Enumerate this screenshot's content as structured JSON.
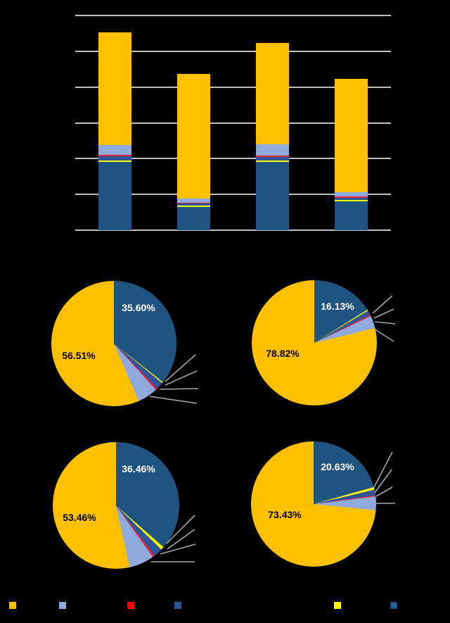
{
  "background": "#000000",
  "colors": {
    "gold": "#FFC000",
    "light_blue": "#8FAADC",
    "red": "#E8233C",
    "medium_blue": "#2E5597",
    "yellow": "#FFFF00",
    "navy": "#1F5480",
    "gridline": "#BFBFBF",
    "leader_line": "#A6A6A6"
  },
  "chart_data": [
    {
      "type": "bar",
      "subtype": "stacked-column",
      "title": "",
      "categories": [
        "",
        "",
        "",
        ""
      ],
      "xlabel": "",
      "ylabel": "",
      "ylim": [
        0,
        6
      ],
      "gridlines": true,
      "axis_tick_labels_visible": false,
      "series": [
        {
          "name": "navy",
          "color": "#1F5480",
          "values": [
            1.9,
            0.64,
            1.9,
            0.81
          ]
        },
        {
          "name": "yellow",
          "color": "#FFFF00",
          "values": [
            0.04,
            0.04,
            0.05,
            0.04
          ]
        },
        {
          "name": "medium-blue",
          "color": "#2E5597",
          "values": [
            0.12,
            0.06,
            0.1,
            0.06
          ]
        },
        {
          "name": "red",
          "color": "#E8233C",
          "values": [
            0.04,
            0.03,
            0.04,
            0.03
          ]
        },
        {
          "name": "light-blue",
          "color": "#8FAADC",
          "values": [
            0.29,
            0.11,
            0.32,
            0.13
          ]
        },
        {
          "name": "gold",
          "color": "#FFC000",
          "values": [
            3.14,
            3.48,
            2.82,
            3.17
          ]
        }
      ]
    },
    {
      "type": "pie",
      "position": "top-left",
      "title": "",
      "slices": [
        {
          "name": "navy",
          "color": "#1F5480",
          "value": 35.6,
          "label": "35.60%",
          "label_visible": true
        },
        {
          "name": "yellow",
          "color": "#FFFF00",
          "value": 0.3,
          "label": "",
          "label_visible": false
        },
        {
          "name": "medium-blue",
          "color": "#2E5597",
          "value": 1.9,
          "label": "",
          "label_visible": false
        },
        {
          "name": "red",
          "color": "#E8233C",
          "value": 0.5,
          "label": "",
          "label_visible": false
        },
        {
          "name": "light-blue",
          "color": "#8FAADC",
          "value": 5.19,
          "label": "",
          "label_visible": false
        },
        {
          "name": "gold",
          "color": "#FFC000",
          "value": 56.51,
          "label": "56.51%",
          "label_visible": true
        }
      ]
    },
    {
      "type": "pie",
      "position": "top-right",
      "title": "",
      "slices": [
        {
          "name": "navy",
          "color": "#1F5480",
          "value": 16.13,
          "label": "16.13%",
          "label_visible": true
        },
        {
          "name": "yellow",
          "color": "#FFFF00",
          "value": 0.3,
          "label": "",
          "label_visible": false
        },
        {
          "name": "medium-blue",
          "color": "#2E5597",
          "value": 1.2,
          "label": "",
          "label_visible": false
        },
        {
          "name": "red",
          "color": "#E8233C",
          "value": 0.35,
          "label": "",
          "label_visible": false
        },
        {
          "name": "light-blue",
          "color": "#8FAADC",
          "value": 3.2,
          "label": "",
          "label_visible": false
        },
        {
          "name": "gold",
          "color": "#FFC000",
          "value": 78.82,
          "label": "78.82%",
          "label_visible": true
        }
      ]
    },
    {
      "type": "pie",
      "position": "bottom-left",
      "title": "",
      "slices": [
        {
          "name": "navy",
          "color": "#1F5480",
          "value": 36.46,
          "label": "36.46%",
          "label_visible": true
        },
        {
          "name": "yellow",
          "color": "#FFFF00",
          "value": 0.8,
          "label": "",
          "label_visible": false
        },
        {
          "name": "medium-blue",
          "color": "#2E5597",
          "value": 2.28,
          "label": "",
          "label_visible": false
        },
        {
          "name": "red",
          "color": "#E8233C",
          "value": 0.6,
          "label": "",
          "label_visible": false
        },
        {
          "name": "light-blue",
          "color": "#8FAADC",
          "value": 6.4,
          "label": "",
          "label_visible": false
        },
        {
          "name": "gold",
          "color": "#FFC000",
          "value": 53.46,
          "label": "53.46%",
          "label_visible": true
        }
      ]
    },
    {
      "type": "pie",
      "position": "bottom-right",
      "title": "",
      "slices": [
        {
          "name": "navy",
          "color": "#1F5480",
          "value": 20.63,
          "label": "20.63%",
          "label_visible": true
        },
        {
          "name": "yellow",
          "color": "#FFFF00",
          "value": 0.7,
          "label": "",
          "label_visible": false
        },
        {
          "name": "medium-blue",
          "color": "#2E5597",
          "value": 1.44,
          "label": "",
          "label_visible": false
        },
        {
          "name": "red",
          "color": "#E8233C",
          "value": 0.3,
          "label": "",
          "label_visible": false
        },
        {
          "name": "light-blue",
          "color": "#8FAADC",
          "value": 3.5,
          "label": "",
          "label_visible": false
        },
        {
          "name": "gold",
          "color": "#FFC000",
          "value": 73.43,
          "label": "73.43%",
          "label_visible": true
        }
      ]
    }
  ],
  "legend": {
    "items": [
      {
        "name": "gold",
        "color": "#FFC000",
        "label": ""
      },
      {
        "name": "light-blue",
        "color": "#8FAADC",
        "label": ""
      },
      {
        "name": "red",
        "color": "#FF0000",
        "label": ""
      },
      {
        "name": "medium-blue",
        "color": "#2E5597",
        "label": ""
      },
      {
        "name": "yellow",
        "color": "#FFFF00",
        "label": ""
      },
      {
        "name": "navy",
        "color": "#2565A0",
        "label": ""
      }
    ]
  }
}
